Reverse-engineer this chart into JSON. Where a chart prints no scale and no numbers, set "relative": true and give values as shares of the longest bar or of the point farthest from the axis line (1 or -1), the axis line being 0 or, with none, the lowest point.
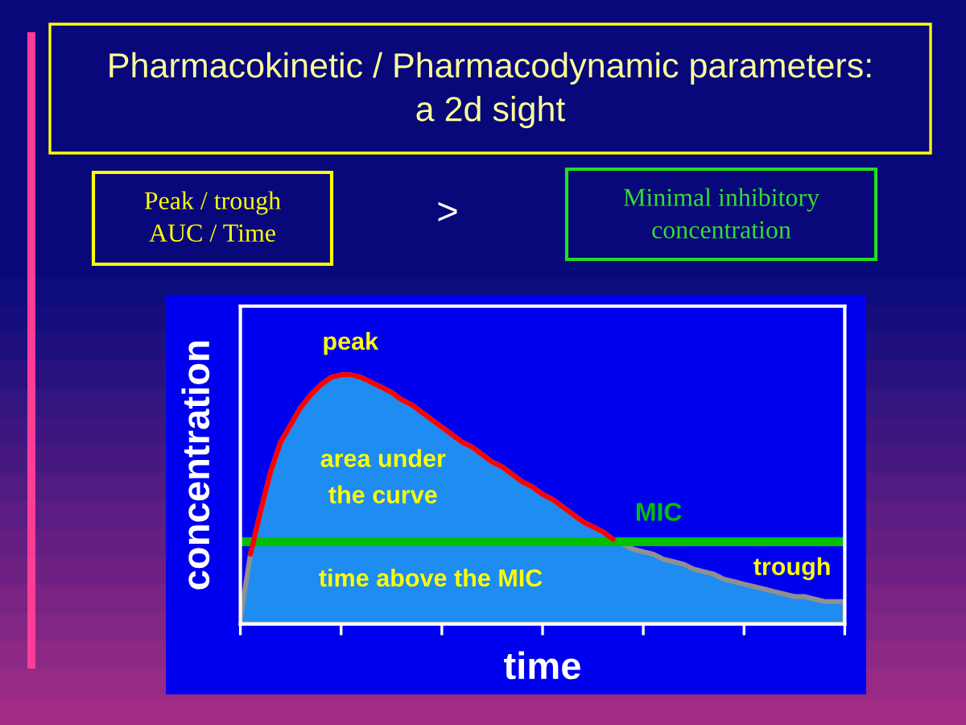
{
  "chart_data": {
    "type": "area",
    "title": "Pharmacokinetic / Pharmacodynamic parameters:\na 2d sight",
    "xlabel": "time",
    "ylabel": "concentration",
    "relative": true,
    "categories": [
      null,
      null,
      null,
      null,
      null,
      null,
      null,
      null,
      null,
      null,
      null,
      null,
      null,
      null,
      null,
      null,
      null,
      null,
      null,
      null,
      null,
      null,
      null,
      null,
      null,
      null,
      null,
      null,
      null,
      null,
      null,
      null,
      null,
      null,
      null,
      null,
      null,
      null,
      null,
      null,
      null,
      null,
      null,
      null,
      null,
      null,
      null,
      null,
      null,
      null,
      null,
      null,
      null,
      null,
      null,
      null,
      null,
      null,
      null,
      null,
      null
    ],
    "series": [
      {
        "color": "#1e8cf0",
        "values": [
          0.02,
          0.28,
          0.45,
          0.61,
          0.73,
          0.8,
          0.87,
          0.92,
          0.96,
          0.99,
          1.0,
          1.0,
          0.99,
          0.97,
          0.95,
          0.93,
          0.9,
          0.88,
          0.85,
          0.82,
          0.79,
          0.76,
          0.73,
          0.71,
          0.68,
          0.65,
          0.63,
          0.6,
          0.57,
          0.55,
          0.52,
          0.5,
          0.47,
          0.44,
          0.41,
          0.39,
          0.37,
          0.34,
          0.32,
          0.3,
          0.29,
          0.28,
          0.26,
          0.25,
          0.24,
          0.22,
          0.21,
          0.2,
          0.18,
          0.17,
          0.16,
          0.15,
          0.14,
          0.13,
          0.12,
          0.11,
          0.11,
          0.1,
          0.09,
          0.09,
          0.09
        ]
      },
      {
        "type": "line",
        "color": "#ff0000",
        "values": [
          null,
          0.28,
          0.45,
          0.61,
          0.73,
          0.8,
          0.87,
          0.92,
          0.96,
          0.99,
          1.0,
          1.0,
          0.99,
          0.97,
          0.95,
          0.93,
          0.9,
          0.88,
          0.85,
          0.82,
          0.79,
          0.76,
          0.73,
          0.71,
          0.68,
          0.65,
          0.63,
          0.6,
          0.57,
          0.55,
          0.52,
          0.5,
          0.47,
          0.44,
          0.41,
          0.39,
          0.37,
          0.34,
          null,
          null,
          null,
          null,
          null,
          null,
          null,
          null,
          null,
          null,
          null,
          null,
          null,
          null,
          null,
          null,
          null,
          null,
          null,
          null,
          null,
          null,
          null
        ]
      }
    ],
    "ref_lines": [
      {
        "axis": "y",
        "value": 0.33,
        "label": "MIC",
        "color": "#00c000"
      }
    ],
    "annotations": [
      "Peak / trough\nAUC / Time",
      ">",
      "Minimal inhibitory\nconcentration",
      "peak",
      "area under\nthe curve",
      "time above the MIC",
      "trough"
    ]
  }
}
